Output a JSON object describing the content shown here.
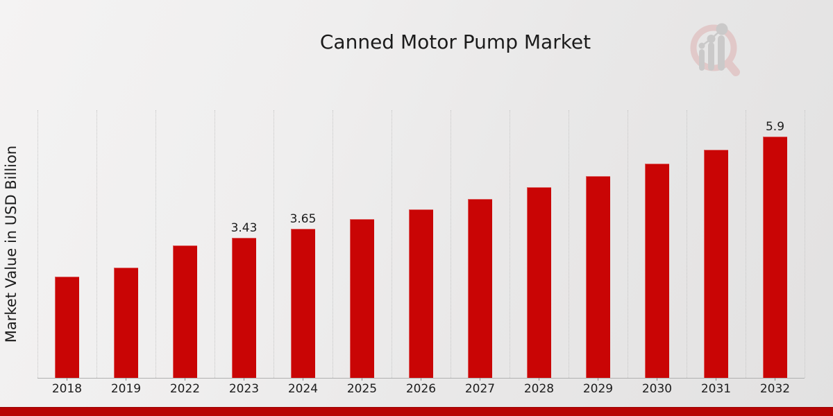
{
  "chart_data": {
    "type": "bar",
    "title": "Canned Motor Pump Market",
    "ylabel": "Market Value in USD Billion",
    "xlabel": "",
    "categories": [
      "2018",
      "2019",
      "2022",
      "2023",
      "2024",
      "2025",
      "2026",
      "2027",
      "2028",
      "2029",
      "2030",
      "2031",
      "2032"
    ],
    "values": [
      2.48,
      2.7,
      3.24,
      3.43,
      3.65,
      3.88,
      4.12,
      4.38,
      4.66,
      4.93,
      5.25,
      5.59,
      5.9
    ],
    "data_labels": {
      "2023": "3.43",
      "2024": "3.65",
      "2032": "5.9"
    },
    "ylim": [
      0,
      6.55
    ],
    "grid": "vertical-dotted",
    "legend": "none"
  },
  "colors": {
    "bar": "#c90505",
    "bottom_band": "#b80404",
    "bottom_band_edge": "#9a0303",
    "text": "#1c1c1c",
    "gridline": "#c6c6c6",
    "axis": "#b0b0b0",
    "logo_ring": "#e0c2c2",
    "logo_glyph": "#c4c3c3"
  },
  "logo": {
    "name": "market-research-magnifier-logo"
  }
}
